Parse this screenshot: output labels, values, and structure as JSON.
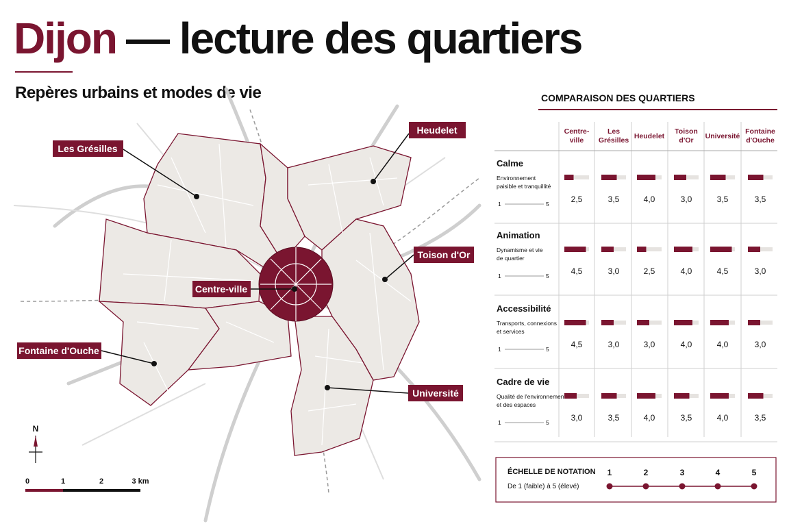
{
  "header": {
    "city": "Dijon",
    "title": "— lecture des quartiers",
    "subtitle": "Repères urbains et modes de vie"
  },
  "map": {
    "districts": [
      "Les Grésilles",
      "Heudelet",
      "Toison d'Or",
      "Centre-ville",
      "Fontaine d'Ouche",
      "Université"
    ],
    "north": "N",
    "scale": [
      "0",
      "1",
      "2",
      "3 km"
    ]
  },
  "table": {
    "title": "COMPARAISON DES QUARTIERS",
    "columns": [
      "Centre-\nville",
      "Les\nGrésilles",
      "Heudelet",
      "Toison\nd'Or",
      "Université",
      "Fontaine\nd'Ouche"
    ],
    "rows": [
      {
        "label": "Calme",
        "description": "Environnement\npaisible et tranquillité",
        "scale_min": 1,
        "scale_max": 5,
        "scores": [
          {
            "value": 2.5,
            "label": "2,5"
          },
          {
            "value": 3.5,
            "label": "3,5"
          },
          {
            "value": 4.0,
            "label": "4,0"
          },
          {
            "value": 3.0,
            "label": "3,0"
          },
          {
            "value": 3.5,
            "label": "3,5"
          },
          {
            "value": 3.5,
            "label": "3,5"
          }
        ]
      },
      {
        "label": "Animation",
        "description": "Dynamisme et vie\nde quartier",
        "scale_min": 1,
        "scale_max": 5,
        "scores": [
          {
            "value": 4.5,
            "label": "4,5"
          },
          {
            "value": 3.0,
            "label": "3,0"
          },
          {
            "value": 2.5,
            "label": "2,5"
          },
          {
            "value": 4.0,
            "label": "4,0"
          },
          {
            "value": 4.5,
            "label": "4,5"
          },
          {
            "value": 3.0,
            "label": "3,0"
          }
        ]
      },
      {
        "label": "Accessibilité",
        "description": "Transports, connexions\net services",
        "scale_min": 1,
        "scale_max": 5,
        "scores": [
          {
            "value": 4.5,
            "label": "4,5"
          },
          {
            "value": 3.0,
            "label": "3,0"
          },
          {
            "value": 3.0,
            "label": "3,0"
          },
          {
            "value": 4.0,
            "label": "4,0"
          },
          {
            "value": 4.0,
            "label": "4,0"
          },
          {
            "value": 3.0,
            "label": "3,0"
          }
        ]
      },
      {
        "label": "Cadre de vie",
        "description": "Qualité de l'environnement\net des espaces",
        "scale_min": 1,
        "scale_max": 5,
        "scores": [
          {
            "value": 3.0,
            "label": "3,0"
          },
          {
            "value": 3.5,
            "label": "3,5"
          },
          {
            "value": 4.0,
            "label": "4,0"
          },
          {
            "value": 3.5,
            "label": "3,5"
          },
          {
            "value": 4.0,
            "label": "4,0"
          },
          {
            "value": 3.5,
            "label": "3,5"
          }
        ]
      }
    ]
  },
  "legend": {
    "title": "ÉCHELLE DE NOTATION",
    "subtitle": "De 1 (faible) à 5 (élevé)",
    "points": [
      1,
      2,
      3,
      4,
      5
    ]
  }
}
